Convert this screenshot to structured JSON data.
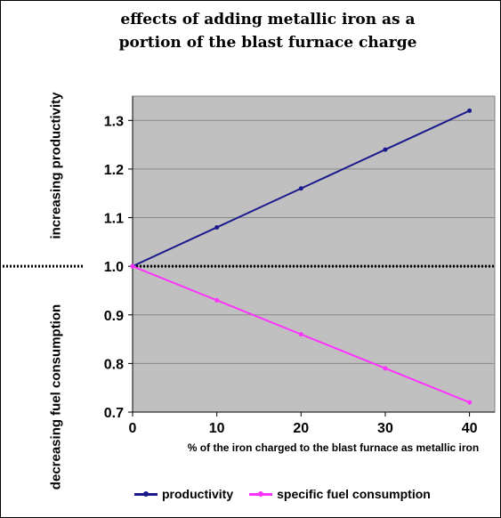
{
  "chart_data": {
    "type": "line",
    "title": [
      "effects of adding metallic iron as a",
      "portion of the blast furnace charge"
    ],
    "ylabel_upper": "increasing productivity",
    "ylabel_lower": "decreasing fuel consumption",
    "xlabel": "% of the iron charged to the blast furnace as metallic iron",
    "x": [
      0,
      10,
      20,
      30,
      40
    ],
    "x_ticks": [
      "0",
      "10",
      "20",
      "30",
      "40"
    ],
    "y_ticks": [
      "0.7",
      "0.8",
      "0.9",
      "1.0",
      "1.1",
      "1.2",
      "1.3"
    ],
    "ylim": [
      0.7,
      1.35
    ],
    "xlim": [
      0,
      43
    ],
    "reference_line": 1.0,
    "grid": true,
    "legend_position": "bottom",
    "series": [
      {
        "name": "productivity",
        "color": "#1a1a8c",
        "values": [
          1.0,
          1.08,
          1.16,
          1.24,
          1.32
        ]
      },
      {
        "name": "specific fuel consumption",
        "color": "#ff33ff",
        "values": [
          1.0,
          0.93,
          0.86,
          0.79,
          0.72
        ]
      }
    ],
    "plot_background": "#c0c0c0"
  }
}
